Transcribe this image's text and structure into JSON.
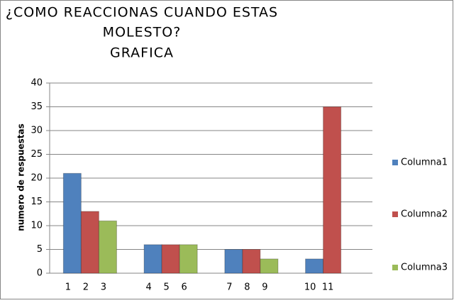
{
  "chart_data": {
    "type": "bar",
    "title": [
      "¿COMO REACCIONAS CUANDO ESTAS",
      "MOLESTO?",
      "GRAFICA"
    ],
    "y_label": "numero de respuestas",
    "categories": [
      null,
      null,
      null,
      null
    ],
    "bar_labels": [
      "1",
      "2",
      "3",
      "4",
      "5",
      "6",
      "7",
      "8",
      "9",
      "10",
      "11"
    ],
    "series": [
      {
        "name": "Columna1",
        "color": "#4f81bd",
        "values": [
          21,
          6,
          5,
          3
        ]
      },
      {
        "name": "Columna2",
        "color": "#c0504d",
        "values": [
          13,
          6,
          5,
          35
        ]
      },
      {
        "name": "Columna3",
        "color": "#9bbb59",
        "values": [
          11,
          6,
          3,
          null
        ]
      }
    ],
    "ylim": [
      0,
      40
    ],
    "yticks": [
      0,
      5,
      10,
      15,
      20,
      25,
      30,
      35,
      40
    ],
    "grid": true,
    "legend": "right"
  }
}
